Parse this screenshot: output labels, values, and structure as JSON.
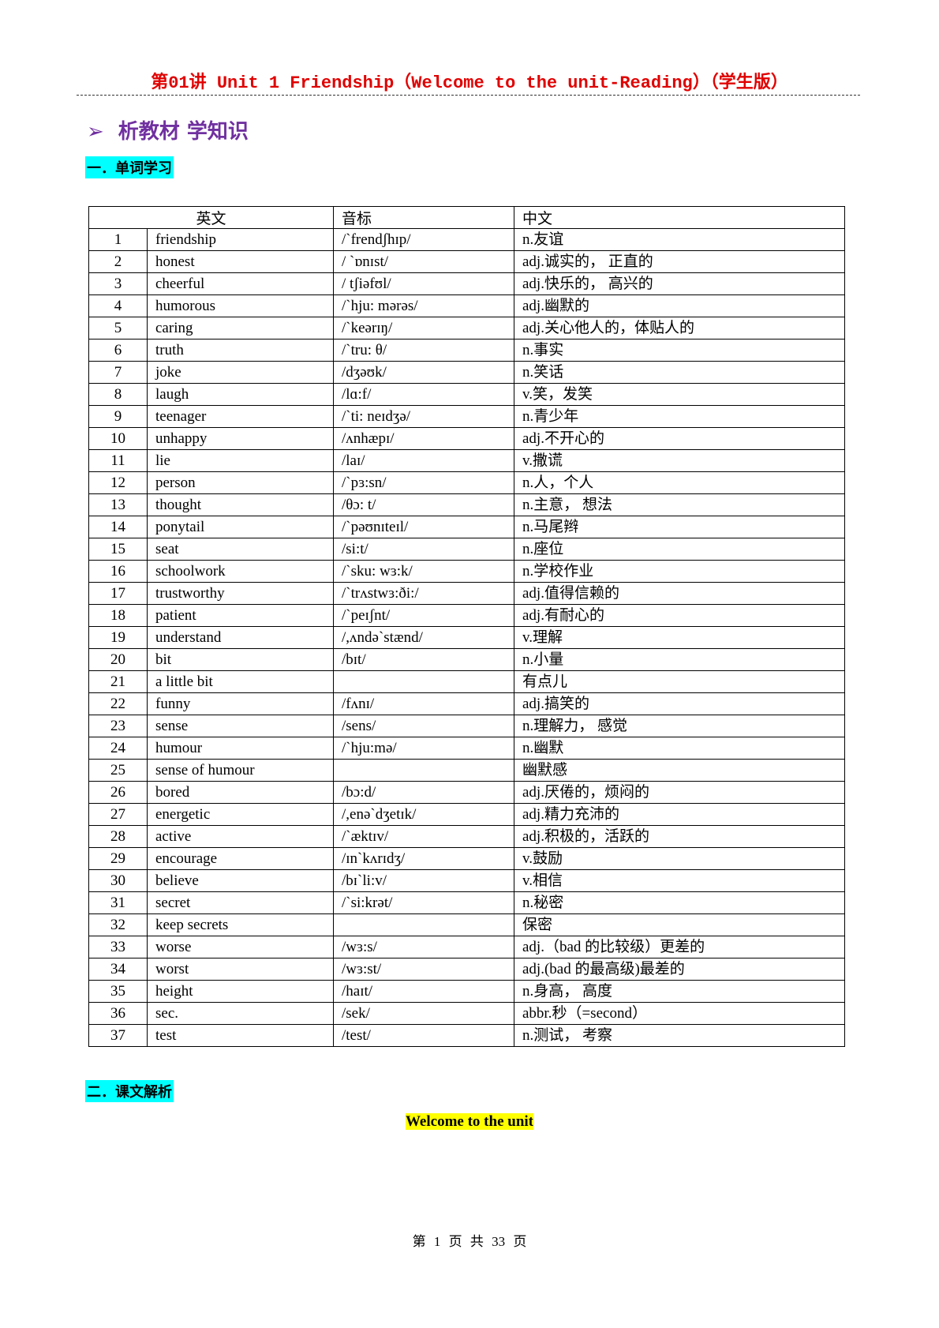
{
  "title": "第01讲 Unit 1 Friendship（Welcome to the unit-Reading）（学生版）",
  "section": {
    "arrow": "➢",
    "label": "析教材 学知识"
  },
  "part1": "一．单词学习",
  "part2": "二．课文解析",
  "table": {
    "headers": [
      "英文",
      "音标",
      "中文"
    ],
    "rows": [
      [
        "1",
        "friendship",
        "/`frendʃhɪp/",
        "n.友谊"
      ],
      [
        "2",
        "honest",
        "/ `ɒnɪst/",
        "adj.诚实的， 正直的"
      ],
      [
        "3",
        "cheerful",
        "/ tʃiəfʊl/",
        "adj.快乐的， 高兴的"
      ],
      [
        "4",
        "humorous",
        "/`hju: mərəs/",
        "adj.幽默的"
      ],
      [
        "5",
        "caring",
        "/`keərɪŋ/",
        "adj.关心他人的，体贴人的"
      ],
      [
        "6",
        "truth",
        "/`tru: θ/",
        "n.事实"
      ],
      [
        "7",
        "joke",
        "/dʒəʊk/",
        "n.笑话"
      ],
      [
        "8",
        "laugh",
        "/lɑ:f/",
        "v.笑，发笑"
      ],
      [
        "9",
        "teenager",
        "/`ti: neɪdʒə/",
        "n.青少年"
      ],
      [
        "10",
        "unhappy",
        "/ʌnhæpɪ/",
        "adj.不开心的"
      ],
      [
        "11",
        "lie",
        "/laɪ/",
        "v.撒谎"
      ],
      [
        "12",
        "person",
        "/`pɜ:sn/",
        "n.人，个人"
      ],
      [
        "13",
        "thought",
        "/θɔ: t/",
        "n.主意， 想法"
      ],
      [
        "14",
        "ponytail",
        "/`pəʊnɪteɪl/",
        "n.马尾辫"
      ],
      [
        "15",
        "seat",
        "/si:t/",
        "n.座位"
      ],
      [
        "16",
        "schoolwork",
        "/`sku: wɜ:k/",
        "n.学校作业"
      ],
      [
        "17",
        "trustworthy",
        "/`trʌstwɜ:ði:/",
        "adj.值得信赖的"
      ],
      [
        "18",
        "patient",
        "/`peɪʃnt/",
        "adj.有耐心的"
      ],
      [
        "19",
        "understand",
        "/,ʌndə`stænd/",
        "v.理解"
      ],
      [
        "20",
        "bit",
        "/bɪt/",
        "n.小量"
      ],
      [
        "21",
        "a little bit",
        "",
        "有点儿"
      ],
      [
        "22",
        "funny",
        "/fʌnɪ/",
        "adj.搞笑的"
      ],
      [
        "23",
        "sense",
        "/sens/",
        "n.理解力， 感觉"
      ],
      [
        "24",
        "humour",
        "/`hju:mə/",
        "n.幽默"
      ],
      [
        "25",
        "sense of humour",
        "",
        "幽默感"
      ],
      [
        "26",
        "bored",
        "/bɔ:d/",
        "adj.厌倦的，烦闷的"
      ],
      [
        "27",
        "energetic",
        "/,enə`dʒetɪk/",
        "adj.精力充沛的"
      ],
      [
        "28",
        "active",
        "/`æktɪv/",
        "adj.积极的，活跃的"
      ],
      [
        "29",
        "encourage",
        "/ɪn`kʌrɪdʒ/",
        "v.鼓励"
      ],
      [
        "30",
        "believe",
        "/bɪ`li:v/",
        "v.相信"
      ],
      [
        "31",
        "secret",
        "/`si:krət/",
        "n.秘密"
      ],
      [
        "32",
        "keep secrets",
        "",
        "保密"
      ],
      [
        "33",
        "worse",
        "/wɜ:s/",
        "adj.（bad 的比较级）更差的"
      ],
      [
        "34",
        "worst",
        "/wɜ:st/",
        "adj.(bad 的最高级)最差的"
      ],
      [
        "35",
        "height",
        "/haɪt/",
        "n.身高， 高度"
      ],
      [
        "36",
        "sec.",
        "/sek/",
        "abbr.秒（=second）"
      ],
      [
        "37",
        "test",
        "/test/",
        "n.测试， 考察"
      ]
    ]
  },
  "welcome": "Welcome to the unit",
  "footer": "第 1 页 共 33 页"
}
